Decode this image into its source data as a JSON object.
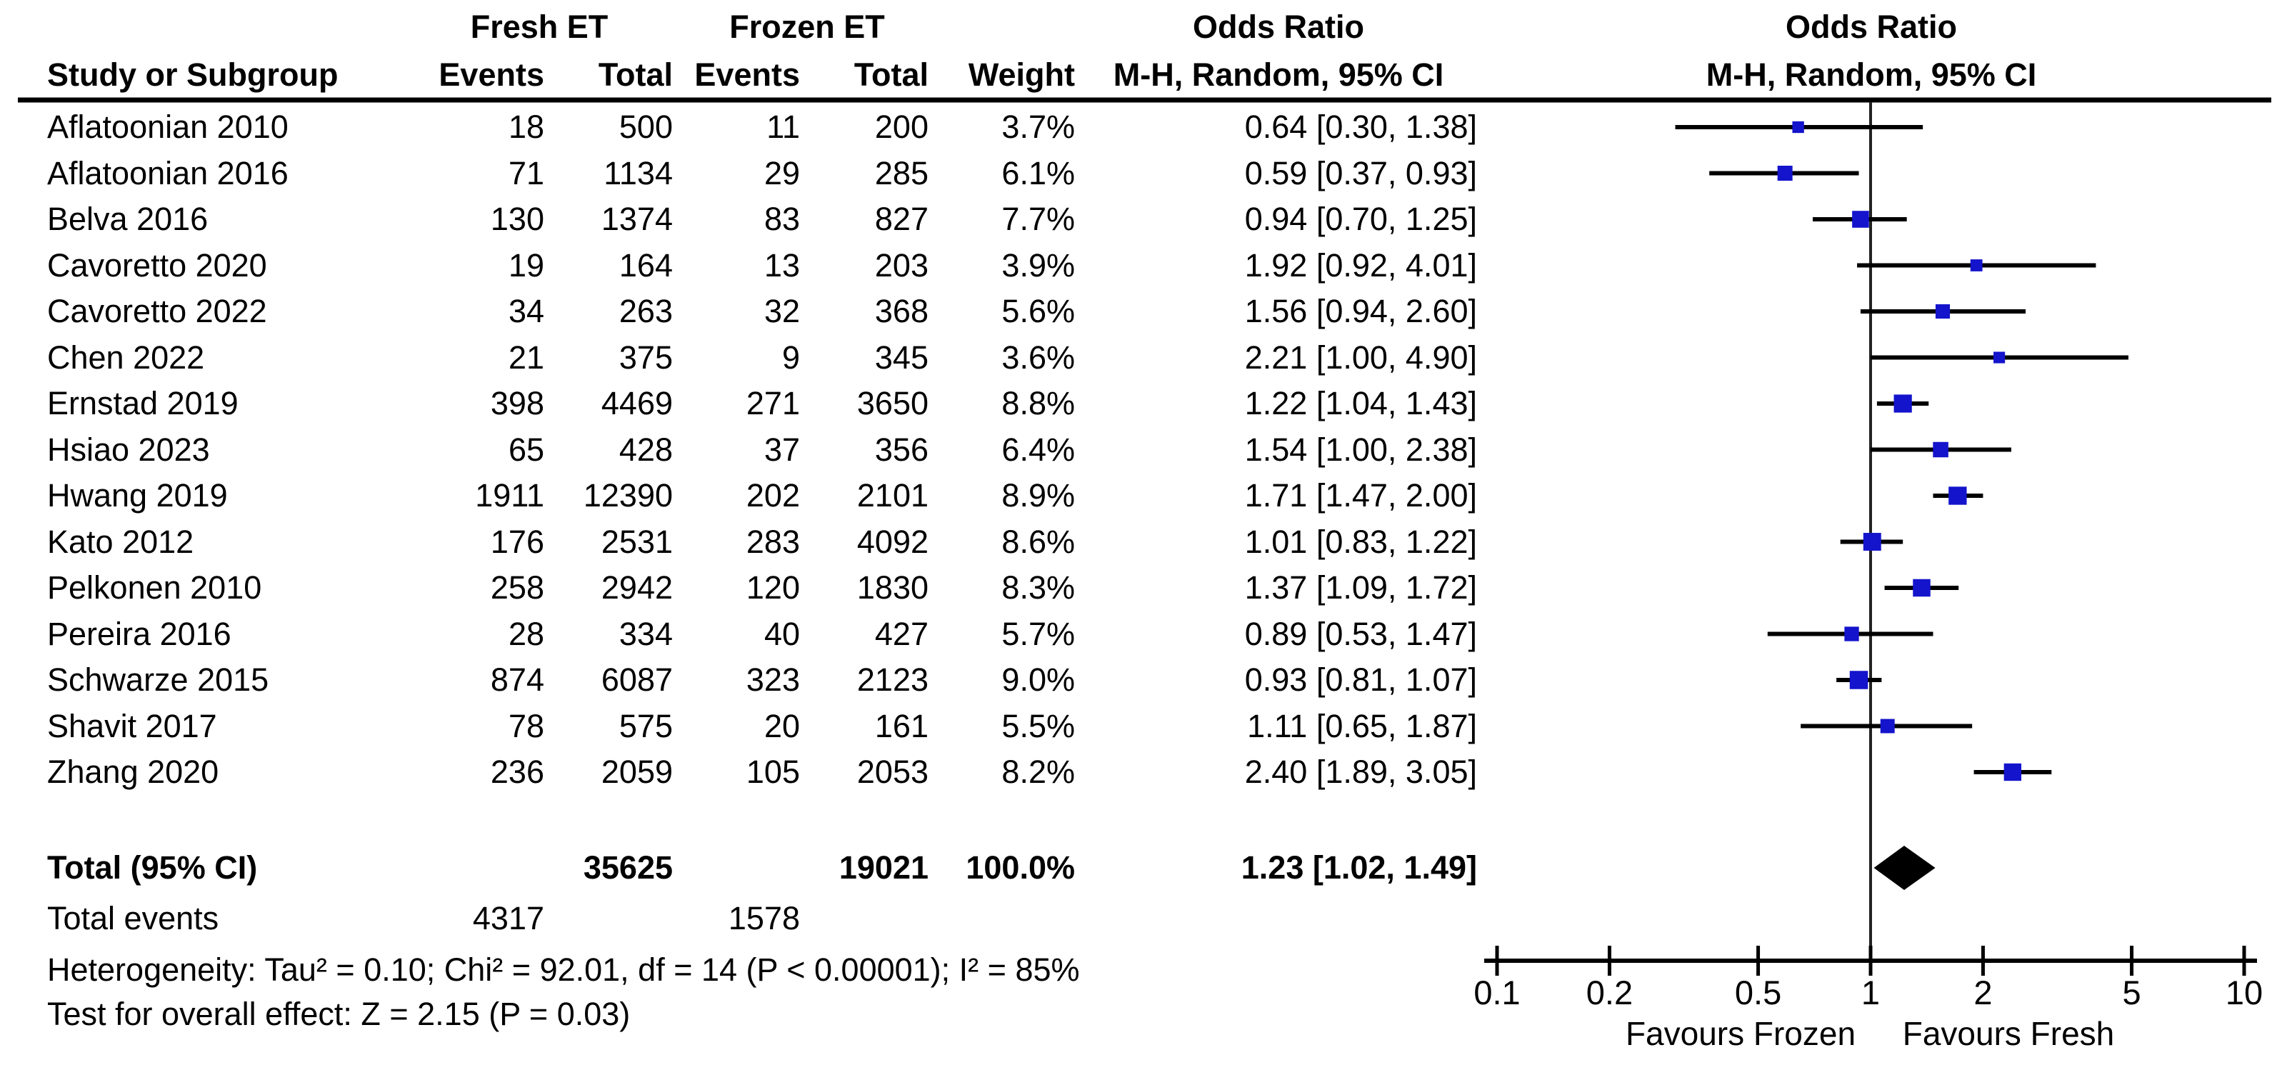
{
  "header": {
    "group": {
      "fresh": "Fresh ET",
      "frozen": "Frozen ET",
      "or_text": "Odds Ratio",
      "or_plot": "Odds Ratio"
    },
    "cols": {
      "study": "Study or Subgroup",
      "fresh_events": "Events",
      "fresh_total": "Total",
      "frozen_events": "Events",
      "frozen_total": "Total",
      "weight": "Weight",
      "mh_text": "M-H, Random, 95% CI",
      "mh_plot": "M-H, Random, 95% CI"
    }
  },
  "rows": [
    {
      "study": "Aflatoonian 2010",
      "fresh_events": "18",
      "fresh_total": "500",
      "frozen_events": "11",
      "frozen_total": "200",
      "weight": "3.7%",
      "or_ci": "0.64 [0.30, 1.38]"
    },
    {
      "study": "Aflatoonian 2016",
      "fresh_events": "71",
      "fresh_total": "1134",
      "frozen_events": "29",
      "frozen_total": "285",
      "weight": "6.1%",
      "or_ci": "0.59 [0.37, 0.93]"
    },
    {
      "study": "Belva 2016",
      "fresh_events": "130",
      "fresh_total": "1374",
      "frozen_events": "83",
      "frozen_total": "827",
      "weight": "7.7%",
      "or_ci": "0.94 [0.70, 1.25]"
    },
    {
      "study": "Cavoretto 2020",
      "fresh_events": "19",
      "fresh_total": "164",
      "frozen_events": "13",
      "frozen_total": "203",
      "weight": "3.9%",
      "or_ci": "1.92 [0.92, 4.01]"
    },
    {
      "study": "Cavoretto 2022",
      "fresh_events": "34",
      "fresh_total": "263",
      "frozen_events": "32",
      "frozen_total": "368",
      "weight": "5.6%",
      "or_ci": "1.56 [0.94, 2.60]"
    },
    {
      "study": "Chen 2022",
      "fresh_events": "21",
      "fresh_total": "375",
      "frozen_events": "9",
      "frozen_total": "345",
      "weight": "3.6%",
      "or_ci": "2.21 [1.00, 4.90]"
    },
    {
      "study": "Ernstad 2019",
      "fresh_events": "398",
      "fresh_total": "4469",
      "frozen_events": "271",
      "frozen_total": "3650",
      "weight": "8.8%",
      "or_ci": "1.22 [1.04, 1.43]"
    },
    {
      "study": "Hsiao 2023",
      "fresh_events": "65",
      "fresh_total": "428",
      "frozen_events": "37",
      "frozen_total": "356",
      "weight": "6.4%",
      "or_ci": "1.54 [1.00, 2.38]"
    },
    {
      "study": "Hwang 2019",
      "fresh_events": "1911",
      "fresh_total": "12390",
      "frozen_events": "202",
      "frozen_total": "2101",
      "weight": "8.9%",
      "or_ci": "1.71 [1.47, 2.00]"
    },
    {
      "study": "Kato 2012",
      "fresh_events": "176",
      "fresh_total": "2531",
      "frozen_events": "283",
      "frozen_total": "4092",
      "weight": "8.6%",
      "or_ci": "1.01 [0.83, 1.22]"
    },
    {
      "study": "Pelkonen 2010",
      "fresh_events": "258",
      "fresh_total": "2942",
      "frozen_events": "120",
      "frozen_total": "1830",
      "weight": "8.3%",
      "or_ci": "1.37 [1.09, 1.72]"
    },
    {
      "study": "Pereira 2016",
      "fresh_events": "28",
      "fresh_total": "334",
      "frozen_events": "40",
      "frozen_total": "427",
      "weight": "5.7%",
      "or_ci": "0.89 [0.53, 1.47]"
    },
    {
      "study": "Schwarze 2015",
      "fresh_events": "874",
      "fresh_total": "6087",
      "frozen_events": "323",
      "frozen_total": "2123",
      "weight": "9.0%",
      "or_ci": "0.93 [0.81, 1.07]"
    },
    {
      "study": "Shavit 2017",
      "fresh_events": "78",
      "fresh_total": "575",
      "frozen_events": "20",
      "frozen_total": "161",
      "weight": "5.5%",
      "or_ci": "1.11 [0.65, 1.87]"
    },
    {
      "study": "Zhang 2020",
      "fresh_events": "236",
      "fresh_total": "2059",
      "frozen_events": "105",
      "frozen_total": "2053",
      "weight": "8.2%",
      "or_ci": "2.40 [1.89, 3.05]"
    }
  ],
  "totals": {
    "label": "Total (95% CI)",
    "fresh_total": "35625",
    "frozen_total": "19021",
    "weight": "100.0%",
    "or_ci": "1.23 [1.02, 1.49]"
  },
  "total_events": {
    "label": "Total events",
    "fresh": "4317",
    "frozen": "1578"
  },
  "footnotes": {
    "heterogeneity": "Heterogeneity: Tau² = 0.10; Chi² = 92.01, df = 14 (P < 0.00001); I² = 85%",
    "overall_effect": "Test for overall effect: Z = 2.15 (P = 0.03)"
  },
  "chart_data": {
    "type": "scatter",
    "subtype": "forest-plot",
    "x_scale": "log10",
    "x_range": [
      0.1,
      10
    ],
    "x_ticks": [
      "0.1",
      "0.2",
      "0.5",
      "1",
      "2",
      "5",
      "10"
    ],
    "x_tick_values": [
      0.1,
      0.2,
      0.5,
      1,
      2,
      5,
      10
    ],
    "reference_line_at": 1,
    "axis_label_left": "Favours Frozen",
    "axis_label_right": "Favours Fresh",
    "marker_color": "#1414cc",
    "diamond_color": "#000000",
    "line_color": "#000000",
    "studies": [
      {
        "name": "Aflatoonian 2010",
        "or": 0.64,
        "lo": 0.3,
        "hi": 1.38,
        "weight": 3.7
      },
      {
        "name": "Aflatoonian 2016",
        "or": 0.59,
        "lo": 0.37,
        "hi": 0.93,
        "weight": 6.1
      },
      {
        "name": "Belva 2016",
        "or": 0.94,
        "lo": 0.7,
        "hi": 1.25,
        "weight": 7.7
      },
      {
        "name": "Cavoretto 2020",
        "or": 1.92,
        "lo": 0.92,
        "hi": 4.01,
        "weight": 3.9
      },
      {
        "name": "Cavoretto 2022",
        "or": 1.56,
        "lo": 0.94,
        "hi": 2.6,
        "weight": 5.6
      },
      {
        "name": "Chen 2022",
        "or": 2.21,
        "lo": 1.0,
        "hi": 4.9,
        "weight": 3.6
      },
      {
        "name": "Ernstad 2019",
        "or": 1.22,
        "lo": 1.04,
        "hi": 1.43,
        "weight": 8.8
      },
      {
        "name": "Hsiao 2023",
        "or": 1.54,
        "lo": 1.0,
        "hi": 2.38,
        "weight": 6.4
      },
      {
        "name": "Hwang 2019",
        "or": 1.71,
        "lo": 1.47,
        "hi": 2.0,
        "weight": 8.9
      },
      {
        "name": "Kato 2012",
        "or": 1.01,
        "lo": 0.83,
        "hi": 1.22,
        "weight": 8.6
      },
      {
        "name": "Pelkonen 2010",
        "or": 1.37,
        "lo": 1.09,
        "hi": 1.72,
        "weight": 8.3
      },
      {
        "name": "Pereira 2016",
        "or": 0.89,
        "lo": 0.53,
        "hi": 1.47,
        "weight": 5.7
      },
      {
        "name": "Schwarze 2015",
        "or": 0.93,
        "lo": 0.81,
        "hi": 1.07,
        "weight": 9.0
      },
      {
        "name": "Shavit 2017",
        "or": 1.11,
        "lo": 0.65,
        "hi": 1.87,
        "weight": 5.5
      },
      {
        "name": "Zhang 2020",
        "or": 2.4,
        "lo": 1.89,
        "hi": 3.05,
        "weight": 8.2
      }
    ],
    "overall": {
      "or": 1.23,
      "lo": 1.02,
      "hi": 1.49
    }
  }
}
